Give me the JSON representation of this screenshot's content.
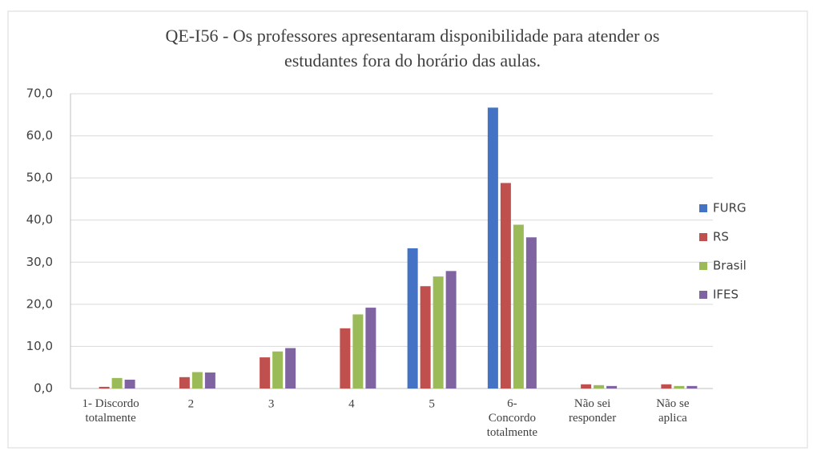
{
  "chart_data": {
    "type": "bar",
    "title": "QE-I56 - Os professores apresentaram disponibilidade para atender os\nestudantes fora do horário das aulas.",
    "categories": [
      "1- Discordo\ntotalmente",
      "2",
      "3",
      "4",
      "5",
      "6-\nConcordo\ntotalmente",
      "Não sei\nresponder",
      "Não se\naplica"
    ],
    "series": [
      {
        "name": "FURG",
        "color": "#4472c4",
        "values": [
          0,
          0,
          0,
          0,
          33.3,
          66.7,
          0,
          0
        ]
      },
      {
        "name": "RS",
        "color": "#c0504d",
        "values": [
          0.4,
          2.7,
          7.4,
          14.3,
          24.3,
          48.8,
          1.0,
          1.0
        ]
      },
      {
        "name": "Brasil",
        "color": "#9bbb59",
        "values": [
          2.5,
          3.9,
          8.8,
          17.6,
          26.6,
          38.9,
          0.8,
          0.6
        ]
      },
      {
        "name": "IFES",
        "color": "#8064a2",
        "values": [
          2.1,
          3.8,
          9.6,
          19.2,
          27.9,
          35.9,
          0.6,
          0.6
        ]
      }
    ],
    "ylim": [
      0,
      70
    ],
    "yticks": [
      {
        "value": 0,
        "label": "0,0"
      },
      {
        "value": 10,
        "label": "10,0"
      },
      {
        "value": 20,
        "label": "20,0"
      },
      {
        "value": 30,
        "label": "30,0"
      },
      {
        "value": 40,
        "label": "40,0"
      },
      {
        "value": 50,
        "label": "50,0"
      },
      {
        "value": 60,
        "label": "60,0"
      },
      {
        "value": 70,
        "label": "70,0"
      }
    ],
    "grid": true,
    "legend": "right"
  }
}
